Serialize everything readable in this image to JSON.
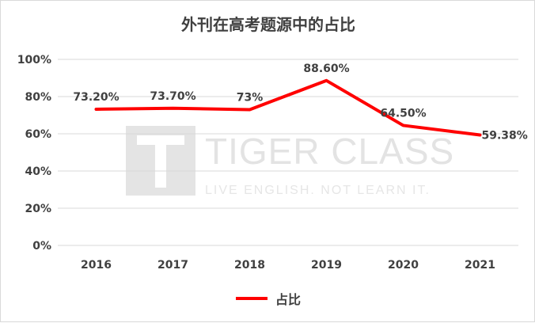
{
  "chart_data": {
    "type": "line",
    "title": "外刊在高考题源中的占比",
    "categories": [
      "2016",
      "2017",
      "2018",
      "2019",
      "2020",
      "2021"
    ],
    "series": [
      {
        "name": "占比",
        "values": [
          73.2,
          73.7,
          73.0,
          88.6,
          64.5,
          59.38
        ],
        "labels": [
          "73.20%",
          "73.70%",
          "73%",
          "88.60%",
          "64.50%",
          "59.38%"
        ]
      }
    ],
    "yticks": [
      "0%",
      "20%",
      "40%",
      "60%",
      "80%",
      "100%"
    ],
    "ylim": [
      0,
      100
    ],
    "grid": true,
    "legend_position": "bottom"
  },
  "watermark": {
    "brand": "TIGER CLASS",
    "tagline": "LIVE ENGLISH. NOT LEARN IT."
  },
  "colors": {
    "series": "#ff0000",
    "grid": "#d9d9d9",
    "text": "#404040"
  }
}
